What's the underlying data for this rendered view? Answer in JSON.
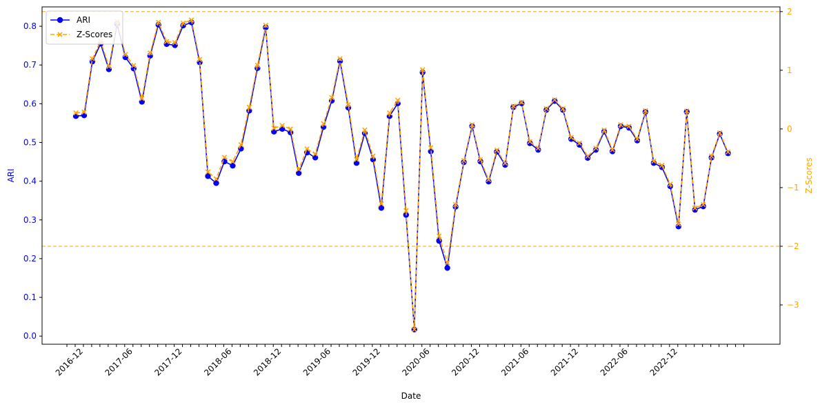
{
  "chart_data": {
    "type": "line",
    "xlabel": "Date",
    "ylabel_left": "ARI",
    "ylabel_right": "Z-Scores",
    "x_tick_labels": [
      "2016-12",
      "2017-06",
      "2017-12",
      "2018-06",
      "2018-12",
      "2019-06",
      "2019-12",
      "2020-06",
      "2020-12",
      "2021-06",
      "2021-12",
      "2022-06",
      "2022-12"
    ],
    "x_tick_label_month_index": [
      2,
      8,
      14,
      20,
      26,
      32,
      38,
      44,
      50,
      56,
      62,
      68,
      74
    ],
    "x_minor_tick_count": 83,
    "y_left_ticks": [
      0.0,
      0.1,
      0.2,
      0.3,
      0.4,
      0.5,
      0.6,
      0.7,
      0.8
    ],
    "y_left_tick_labels": [
      "0.0",
      "0.1",
      "0.2",
      "0.3",
      "0.4",
      "0.5",
      "0.6",
      "0.7",
      "0.8"
    ],
    "y_left_lim": [
      -0.021,
      0.85
    ],
    "y_right_ticks": [
      -3,
      -2,
      -1,
      0,
      1,
      2
    ],
    "y_right_tick_labels": [
      "−3",
      "−2",
      "−1",
      "0",
      "1",
      "2"
    ],
    "y_right_lim": [
      -3.67,
      2.08
    ],
    "threshold_lines": [
      2,
      -2
    ],
    "legend_position": "upper-left",
    "series": [
      {
        "name": "ARI",
        "axis": "left",
        "style": "solid line with circle markers",
        "color": "#0000ff",
        "values": [
          0.568,
          0.57,
          0.709,
          0.755,
          0.689,
          0.806,
          0.72,
          0.691,
          0.605,
          0.724,
          0.804,
          0.754,
          0.751,
          0.802,
          0.81,
          0.707,
          0.413,
          0.395,
          0.451,
          0.44,
          0.484,
          0.582,
          0.692,
          0.797,
          0.528,
          0.535,
          0.526,
          0.421,
          0.474,
          0.461,
          0.54,
          0.608,
          0.71,
          0.59,
          0.447,
          0.524,
          0.456,
          0.331,
          0.568,
          0.601,
          0.313,
          0.017,
          0.681,
          0.477,
          0.246,
          0.176,
          0.334,
          0.449,
          0.542,
          0.451,
          0.399,
          0.476,
          0.442,
          0.591,
          0.601,
          0.498,
          0.481,
          0.584,
          0.607,
          0.584,
          0.509,
          0.494,
          0.46,
          0.481,
          0.528,
          0.477,
          0.542,
          0.538,
          0.505,
          0.579,
          0.447,
          0.436,
          0.387,
          0.283,
          0.579,
          0.326,
          0.335,
          0.461,
          0.522,
          0.472
        ]
      },
      {
        "name": "Z-Scores",
        "axis": "right",
        "style": "dashed line with x markers",
        "color": "#ffa500",
        "values": [
          0.273,
          0.288,
          1.197,
          1.497,
          1.066,
          1.83,
          1.269,
          1.08,
          0.518,
          1.295,
          1.817,
          1.49,
          1.471,
          1.804,
          1.856,
          1.184,
          -0.733,
          -0.851,
          -0.485,
          -0.557,
          -0.269,
          0.37,
          1.086,
          1.765,
          0.012,
          0.058,
          -0.001,
          -0.687,
          -0.341,
          -0.426,
          0.09,
          0.534,
          1.197,
          0.413,
          -0.52,
          -0.017,
          -0.461,
          -1.277,
          0.273,
          0.488,
          -1.394,
          -3.418,
          1.008,
          -0.321,
          -1.825,
          -2.281,
          -1.29,
          -0.54,
          0.071,
          -0.524,
          -0.864,
          -0.361,
          -0.583,
          0.39,
          0.456,
          -0.217,
          -0.328,
          0.344,
          0.495,
          0.344,
          -0.145,
          -0.243,
          -0.465,
          -0.328,
          -0.021,
          -0.354,
          0.071,
          0.045,
          -0.171,
          0.312,
          -0.549,
          -0.621,
          -0.942,
          -1.621,
          0.305,
          -1.349,
          -1.29,
          -0.465,
          -0.067,
          -0.393
        ]
      }
    ]
  }
}
